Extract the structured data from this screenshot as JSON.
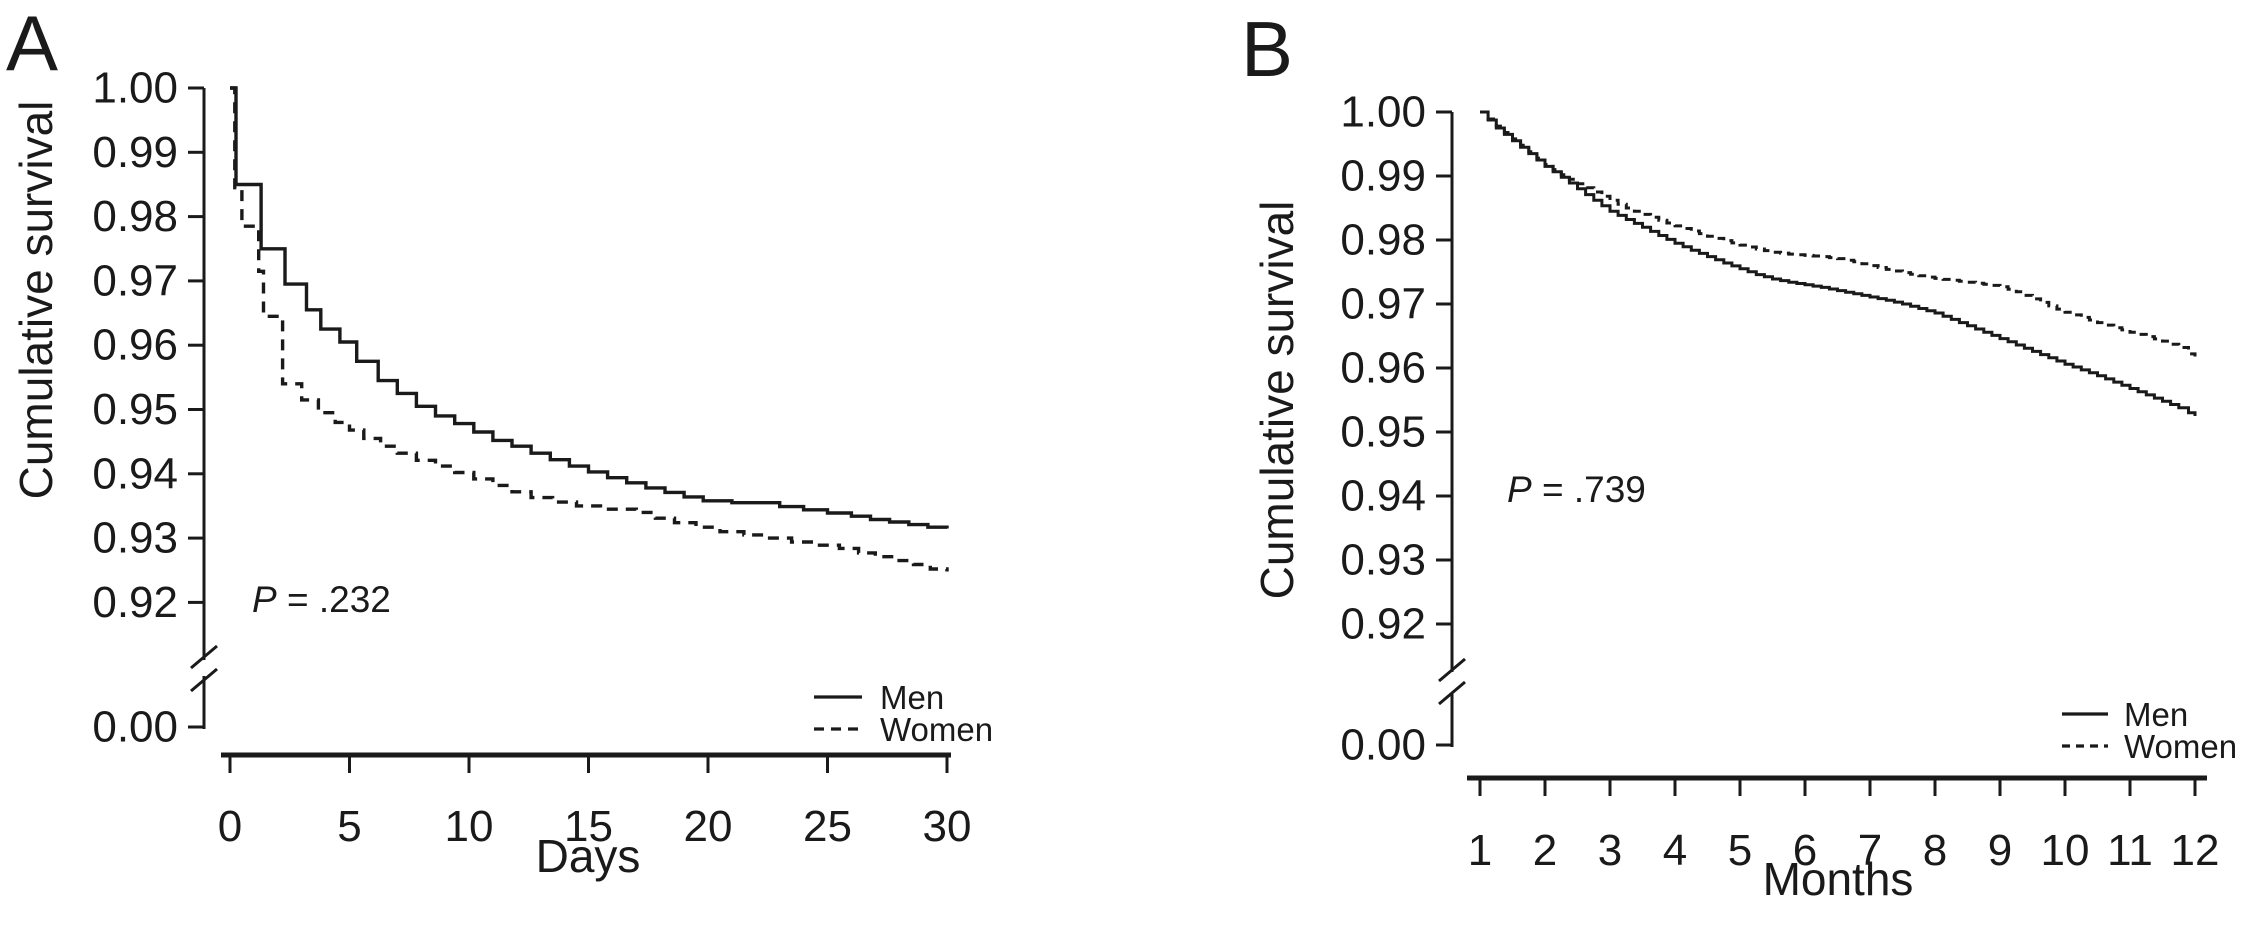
{
  "figure": {
    "panels": [
      {
        "panel_label": "A",
        "y_axis_label": "Cumulative survival",
        "x_axis_label": "Days",
        "p_text_italic": "P",
        "p_text_rest": " = .232",
        "legend": {
          "men_label": "Men",
          "women_label": "Women"
        }
      },
      {
        "panel_label": "B",
        "y_axis_label": "Cumulative survival",
        "x_axis_label": "Months",
        "p_text_italic": "P",
        "p_text_rest": " = .739",
        "legend": {
          "men_label": "Men",
          "women_label": "Women"
        }
      }
    ]
  },
  "chart_data": [
    {
      "type": "line",
      "panel": "A",
      "xlabel": "Days",
      "ylabel": "Cumulative survival",
      "xlim": [
        0,
        30
      ],
      "ylim": [
        0.92,
        1.0
      ],
      "axis_break": true,
      "x_ticks": [
        0,
        5,
        10,
        15,
        20,
        25,
        30
      ],
      "y_ticks": [
        "1.00",
        "0.99",
        "0.98",
        "0.97",
        "0.96",
        "0.95",
        "0.94",
        "0.93",
        "0.92"
      ],
      "y_break_tick": "0.00",
      "p_value_label": "P = .232",
      "legend_entries": [
        "Men",
        "Women"
      ],
      "legend_position": "inside-bottom-right",
      "grid": false,
      "series": [
        {
          "name": "Men",
          "style": "solid",
          "step": true,
          "points": [
            [
              0,
              1.0
            ],
            [
              0.25,
              0.985
            ],
            [
              1.3,
              0.975
            ],
            [
              2.3,
              0.9695
            ],
            [
              3.2,
              0.9655
            ],
            [
              3.8,
              0.9625
            ],
            [
              4.6,
              0.9605
            ],
            [
              5.3,
              0.9575
            ],
            [
              6.2,
              0.9545
            ],
            [
              7.0,
              0.9525
            ],
            [
              7.8,
              0.9505
            ],
            [
              8.6,
              0.949
            ],
            [
              9.4,
              0.9478
            ],
            [
              10.2,
              0.9465
            ],
            [
              11.0,
              0.9452
            ],
            [
              11.8,
              0.9443
            ],
            [
              12.6,
              0.9432
            ],
            [
              13.4,
              0.9422
            ],
            [
              14.2,
              0.9412
            ],
            [
              15.0,
              0.9403
            ],
            [
              15.8,
              0.9394
            ],
            [
              16.6,
              0.9386
            ],
            [
              17.4,
              0.9378
            ],
            [
              18.2,
              0.9371
            ],
            [
              19.0,
              0.9364
            ],
            [
              19.8,
              0.9358
            ],
            [
              21.0,
              0.9355
            ],
            [
              23.0,
              0.9349
            ],
            [
              24.0,
              0.9344
            ],
            [
              25.0,
              0.9339
            ],
            [
              26.0,
              0.9334
            ],
            [
              26.8,
              0.9329
            ],
            [
              27.6,
              0.9325
            ],
            [
              28.4,
              0.9321
            ],
            [
              29.2,
              0.9317
            ],
            [
              30,
              0.9315
            ]
          ]
        },
        {
          "name": "Women",
          "style": "dashed",
          "step": true,
          "points": [
            [
              0,
              1.0
            ],
            [
              0.2,
              0.9845
            ],
            [
              0.5,
              0.9785
            ],
            [
              1.2,
              0.9715
            ],
            [
              1.4,
              0.9645
            ],
            [
              2.2,
              0.954
            ],
            [
              3.0,
              0.9515
            ],
            [
              3.7,
              0.9495
            ],
            [
              4.4,
              0.948
            ],
            [
              5.0,
              0.9468
            ],
            [
              5.6,
              0.9455
            ],
            [
              6.3,
              0.9443
            ],
            [
              7.0,
              0.9432
            ],
            [
              7.8,
              0.9421
            ],
            [
              8.6,
              0.9412
            ],
            [
              9.4,
              0.9402
            ],
            [
              10.2,
              0.9392
            ],
            [
              11.0,
              0.9382
            ],
            [
              11.8,
              0.9372
            ],
            [
              12.6,
              0.9363
            ],
            [
              13.5,
              0.9356
            ],
            [
              14.5,
              0.935
            ],
            [
              15.5,
              0.9345
            ],
            [
              17.0,
              0.934
            ],
            [
              17.8,
              0.9331
            ],
            [
              18.6,
              0.9324
            ],
            [
              19.5,
              0.9317
            ],
            [
              20.5,
              0.931
            ],
            [
              21.5,
              0.9305
            ],
            [
              22.5,
              0.93
            ],
            [
              23.5,
              0.9294
            ],
            [
              24.5,
              0.9289
            ],
            [
              25.5,
              0.9284
            ],
            [
              26.3,
              0.9277
            ],
            [
              27.0,
              0.9271
            ],
            [
              27.8,
              0.9265
            ],
            [
              28.6,
              0.9259
            ],
            [
              29.3,
              0.9252
            ],
            [
              30,
              0.9248
            ]
          ]
        }
      ]
    },
    {
      "type": "line",
      "panel": "B",
      "xlabel": "Months",
      "ylabel": "Cumulative survival",
      "xlim": [
        1,
        12
      ],
      "ylim": [
        0.92,
        1.0
      ],
      "axis_break": true,
      "x_ticks": [
        1,
        2,
        3,
        4,
        5,
        6,
        7,
        8,
        9,
        10,
        11,
        12
      ],
      "y_ticks": [
        "1.00",
        "0.99",
        "0.98",
        "0.97",
        "0.96",
        "0.95",
        "0.94",
        "0.93",
        "0.92"
      ],
      "y_break_tick": "0.00",
      "p_value_label": "P = .739",
      "legend_entries": [
        "Men",
        "Women"
      ],
      "legend_position": "inside-bottom-right",
      "grid": false,
      "series": [
        {
          "name": "Men",
          "style": "solid",
          "step": true,
          "points": [
            [
              1,
              1.0
            ],
            [
              1.25,
              0.9975
            ],
            [
              1.5,
              0.9955
            ],
            [
              1.75,
              0.9935
            ],
            [
              2,
              0.9915
            ],
            [
              2.25,
              0.9898
            ],
            [
              2.5,
              0.988
            ],
            [
              2.75,
              0.9862
            ],
            [
              3,
              0.9845
            ],
            [
              3.25,
              0.9832
            ],
            [
              3.5,
              0.982
            ],
            [
              3.75,
              0.9807
            ],
            [
              4,
              0.9795
            ],
            [
              4.25,
              0.9784
            ],
            [
              4.5,
              0.9774
            ],
            [
              4.75,
              0.9764
            ],
            [
              5,
              0.9755
            ],
            [
              5.25,
              0.9746
            ],
            [
              5.5,
              0.9739
            ],
            [
              5.75,
              0.9734
            ],
            [
              6,
              0.973
            ],
            [
              6.25,
              0.9726
            ],
            [
              6.5,
              0.9721
            ],
            [
              6.75,
              0.9716
            ],
            [
              7,
              0.9711
            ],
            [
              7.25,
              0.9706
            ],
            [
              7.5,
              0.97
            ],
            [
              7.75,
              0.9693
            ],
            [
              8,
              0.9686
            ],
            [
              8.25,
              0.9676
            ],
            [
              8.5,
              0.9666
            ],
            [
              8.75,
              0.9656
            ],
            [
              9,
              0.9646
            ],
            [
              9.25,
              0.9636
            ],
            [
              9.5,
              0.9626
            ],
            [
              9.75,
              0.9616
            ],
            [
              10,
              0.9606
            ],
            [
              10.25,
              0.9597
            ],
            [
              10.5,
              0.9588
            ],
            [
              10.75,
              0.9578
            ],
            [
              11,
              0.9568
            ],
            [
              11.25,
              0.9558
            ],
            [
              11.5,
              0.9548
            ],
            [
              11.75,
              0.9538
            ],
            [
              11.9,
              0.953
            ],
            [
              12,
              0.9525
            ]
          ]
        },
        {
          "name": "Women",
          "style": "dashed",
          "step": true,
          "points": [
            [
              1,
              1.0
            ],
            [
              1.25,
              0.9978
            ],
            [
              1.5,
              0.9958
            ],
            [
              1.75,
              0.9938
            ],
            [
              2,
              0.9918
            ],
            [
              2.25,
              0.9902
            ],
            [
              2.5,
              0.9888
            ],
            [
              2.75,
              0.9875
            ],
            [
              3,
              0.9862
            ],
            [
              3.25,
              0.985
            ],
            [
              3.5,
              0.984
            ],
            [
              3.75,
              0.9831
            ],
            [
              4,
              0.9822
            ],
            [
              4.25,
              0.9814
            ],
            [
              4.5,
              0.9806
            ],
            [
              4.75,
              0.9799
            ],
            [
              5,
              0.9792
            ],
            [
              5.25,
              0.9786
            ],
            [
              5.5,
              0.9781
            ],
            [
              5.75,
              0.9778
            ],
            [
              6,
              0.9776
            ],
            [
              6.25,
              0.9774
            ],
            [
              6.5,
              0.9771
            ],
            [
              6.75,
              0.9766
            ],
            [
              7,
              0.976
            ],
            [
              7.25,
              0.9754
            ],
            [
              7.5,
              0.9749
            ],
            [
              7.75,
              0.9744
            ],
            [
              8,
              0.974
            ],
            [
              8.25,
              0.9737
            ],
            [
              8.5,
              0.9734
            ],
            [
              8.75,
              0.9731
            ],
            [
              9,
              0.9727
            ],
            [
              9.25,
              0.9719
            ],
            [
              9.5,
              0.9708
            ],
            [
              9.75,
              0.9697
            ],
            [
              10,
              0.9687
            ],
            [
              10.25,
              0.9679
            ],
            [
              10.5,
              0.9671
            ],
            [
              10.75,
              0.9663
            ],
            [
              11,
              0.9656
            ],
            [
              11.25,
              0.9649
            ],
            [
              11.5,
              0.9642
            ],
            [
              11.75,
              0.9632
            ],
            [
              11.9,
              0.9622
            ],
            [
              12,
              0.9618
            ]
          ]
        }
      ]
    }
  ]
}
